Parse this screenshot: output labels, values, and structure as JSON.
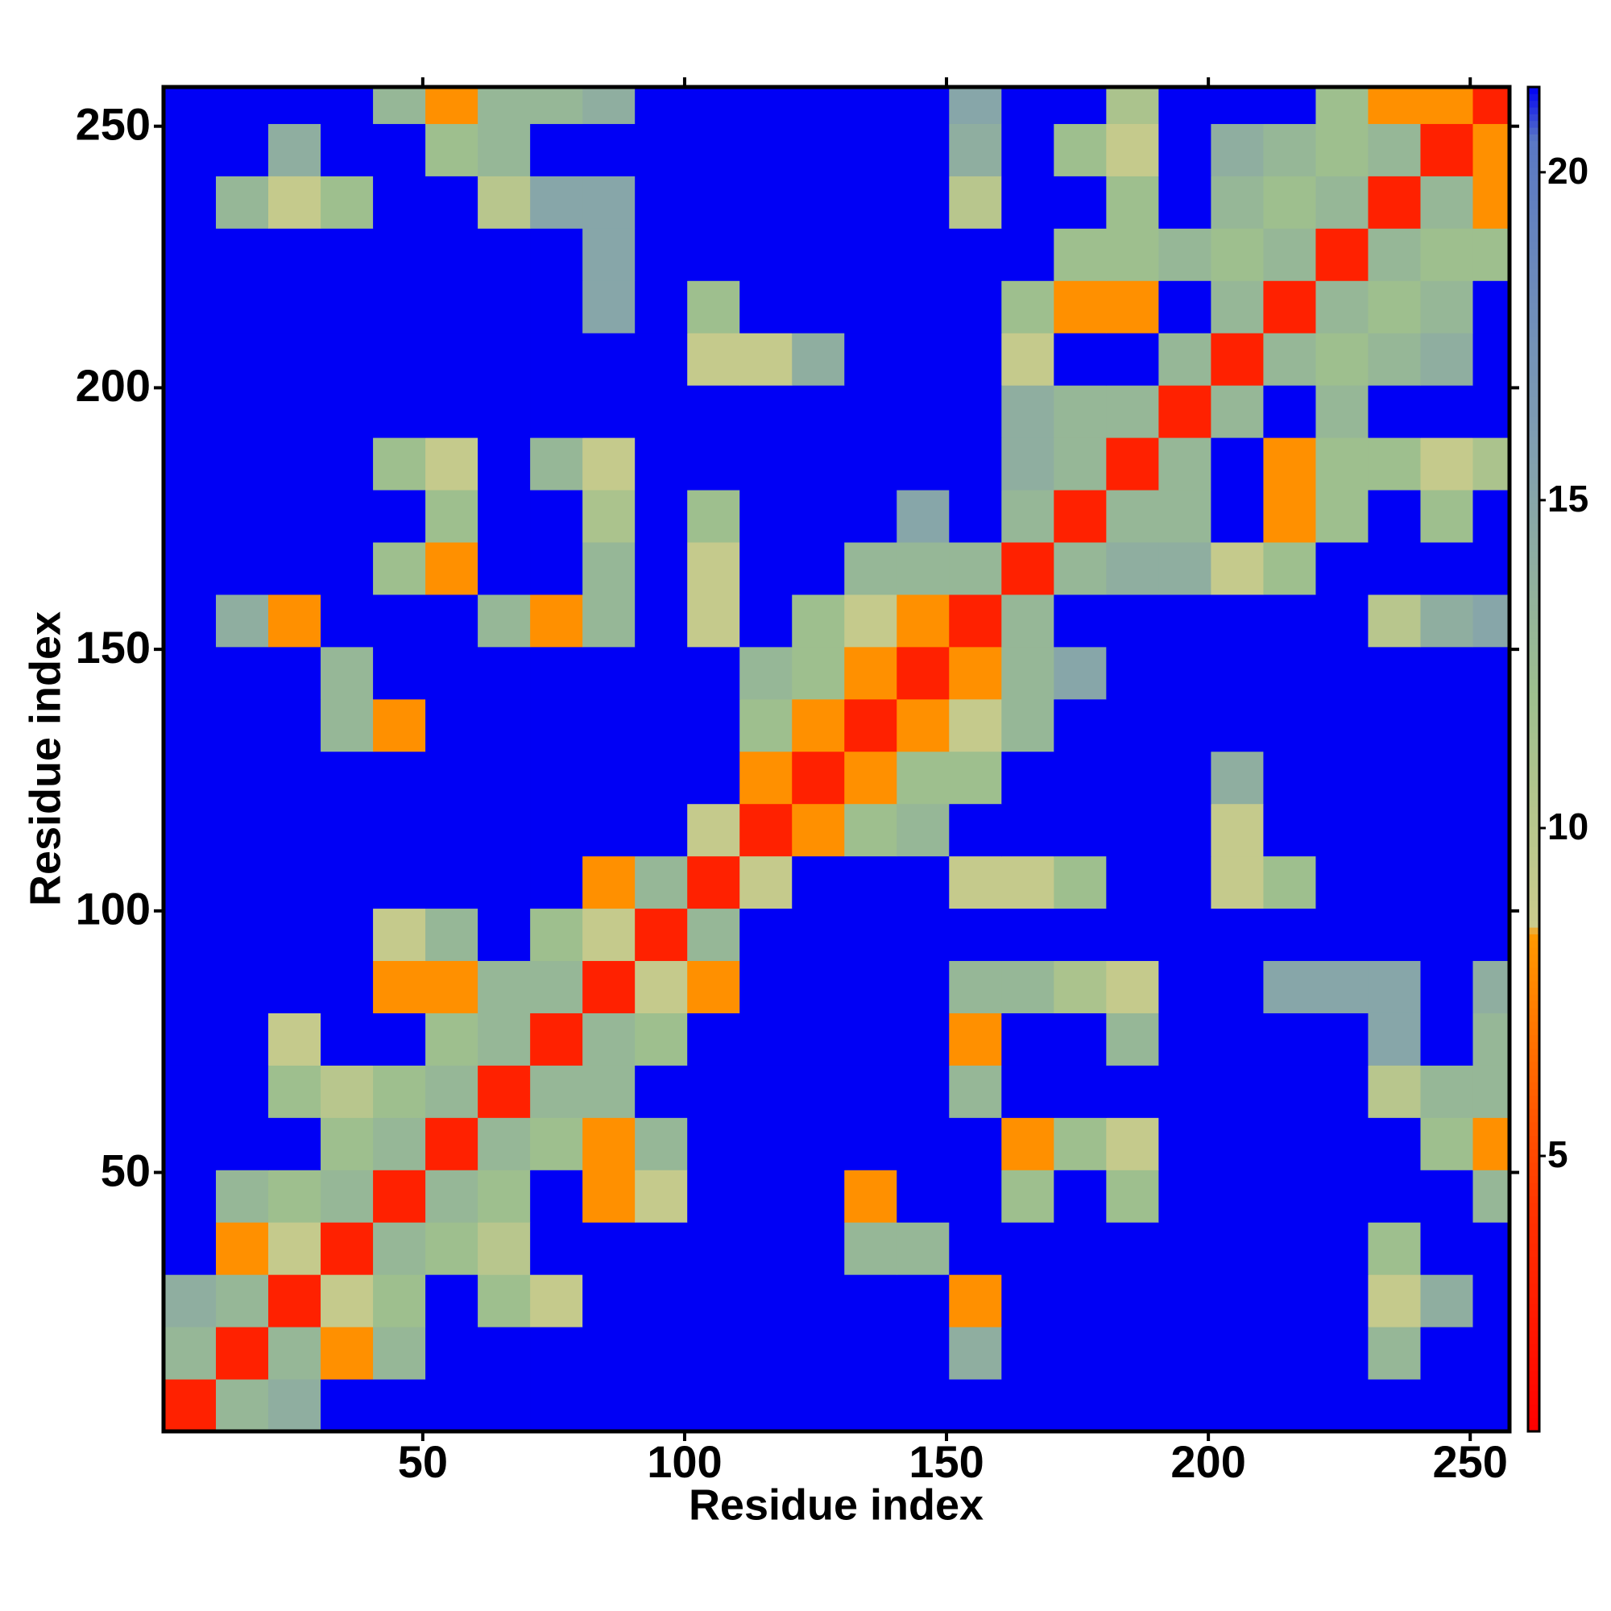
{
  "chart_data": {
    "type": "heatmap",
    "xlabel": "Residue index",
    "ylabel": "Residue index",
    "xlim": [
      0.5,
      257.5
    ],
    "ylim": [
      0.5,
      257.5
    ],
    "xticks": [
      50,
      100,
      150,
      200,
      250
    ],
    "yticks": [
      50,
      100,
      150,
      200,
      250
    ],
    "xbins": [
      0.5,
      10.5,
      20.5,
      30.5,
      40.5,
      50.5,
      60.5,
      70.5,
      80.5,
      90.5,
      100.5,
      110.5,
      120.5,
      130.5,
      140.5,
      150.5,
      160.5,
      170.5,
      180.5,
      190.5,
      200.5,
      210.5,
      220.5,
      230.5,
      240.5,
      250.5,
      257.5
    ],
    "ybins": [
      0.5,
      10.5,
      20.5,
      30.5,
      40.5,
      50.5,
      60.5,
      70.5,
      80.5,
      90.5,
      100.5,
      110.5,
      120.5,
      130.5,
      140.5,
      150.5,
      160.5,
      170.5,
      180.5,
      190.5,
      200.5,
      210.5,
      220.5,
      230.5,
      240.5,
      250.5,
      257.5
    ],
    "zlim": [
      0.8,
      21.3
    ],
    "zticks": [
      5,
      10,
      15,
      20
    ],
    "colorscale": [
      [
        0.8,
        "#ff0000"
      ],
      [
        4,
        "#ff3000"
      ],
      [
        8.4,
        "#ff9a00"
      ],
      [
        8.5,
        "#cccc8c"
      ],
      [
        12,
        "#9ebf8e"
      ],
      [
        16,
        "#7f9db2"
      ],
      [
        20.5,
        "#5a78c4"
      ],
      [
        21.3,
        "#0000f5"
      ]
    ],
    "values": [
      [
        3,
        13,
        14,
        21.3,
        21.3,
        21.3,
        21.3,
        21.3,
        21.3,
        21.3,
        21.3,
        21.3,
        21.3,
        21.3,
        21.3,
        21.3,
        21.3,
        21.3,
        21.3,
        21.3,
        21.3,
        21.3,
        21.3,
        21.3,
        21.3,
        21.3
      ],
      [
        13,
        3,
        13,
        8,
        13,
        21.3,
        21.3,
        21.3,
        21.3,
        21.3,
        21.3,
        21.3,
        21.3,
        21.3,
        21.3,
        14,
        21.3,
        21.3,
        21.3,
        21.3,
        21.3,
        21.3,
        21.3,
        13,
        21.3,
        21.3
      ],
      [
        14,
        13,
        3,
        9,
        12,
        21.3,
        12,
        9,
        21.3,
        21.3,
        21.3,
        21.3,
        21.3,
        21.3,
        21.3,
        8,
        21.3,
        21.3,
        21.3,
        21.3,
        21.3,
        21.3,
        21.3,
        9,
        14,
        21.3
      ],
      [
        21.3,
        8,
        9,
        3,
        13,
        12,
        10,
        21.3,
        21.3,
        21.3,
        21.3,
        21.3,
        21.3,
        13,
        13,
        21.3,
        21.3,
        21.3,
        21.3,
        21.3,
        21.3,
        21.3,
        21.3,
        12,
        21.3,
        21.3
      ],
      [
        21.3,
        13,
        12,
        13,
        3,
        13,
        12,
        21.3,
        8,
        9,
        21.3,
        21.3,
        21.3,
        8,
        21.3,
        21.3,
        12,
        21.3,
        12,
        21.3,
        21.3,
        21.3,
        21.3,
        21.3,
        21.3,
        13
      ],
      [
        21.3,
        21.3,
        21.3,
        12,
        13,
        3,
        13,
        12,
        8,
        13,
        21.3,
        21.3,
        21.3,
        21.3,
        21.3,
        21.3,
        8,
        12,
        9,
        21.3,
        21.3,
        21.3,
        21.3,
        21.3,
        12,
        8
      ],
      [
        21.3,
        21.3,
        12,
        10,
        12,
        13,
        3,
        13,
        13,
        21.3,
        21.3,
        21.3,
        21.3,
        21.3,
        21.3,
        13,
        21.3,
        21.3,
        21.3,
        21.3,
        21.3,
        21.3,
        21.3,
        10,
        13,
        13
      ],
      [
        21.3,
        21.3,
        9,
        21.3,
        21.3,
        12,
        13,
        3,
        13,
        12,
        21.3,
        21.3,
        21.3,
        21.3,
        21.3,
        8,
        21.3,
        21.3,
        13,
        21.3,
        21.3,
        21.3,
        21.3,
        15,
        21.3,
        13
      ],
      [
        21.3,
        21.3,
        21.3,
        21.3,
        8,
        8,
        13,
        13,
        3,
        9,
        8,
        21.3,
        21.3,
        21.3,
        21.3,
        13,
        13,
        11,
        9,
        21.3,
        21.3,
        15,
        15,
        15,
        21.3,
        14
      ],
      [
        21.3,
        21.3,
        21.3,
        21.3,
        9,
        13,
        21.3,
        12,
        9,
        3,
        13,
        21.3,
        21.3,
        21.3,
        21.3,
        21.3,
        21.3,
        21.3,
        21.3,
        21.3,
        21.3,
        21.3,
        21.3,
        21.3,
        21.3,
        21.3
      ],
      [
        21.3,
        21.3,
        21.3,
        21.3,
        21.3,
        21.3,
        21.3,
        21.3,
        8,
        13,
        3,
        9,
        21.3,
        21.3,
        21.3,
        9,
        9,
        12,
        21.3,
        21.3,
        9,
        12,
        21.3,
        21.3,
        21.3,
        21.3
      ],
      [
        21.3,
        21.3,
        21.3,
        21.3,
        21.3,
        21.3,
        21.3,
        21.3,
        21.3,
        21.3,
        9,
        3,
        8,
        12,
        13,
        21.3,
        21.3,
        21.3,
        21.3,
        21.3,
        9,
        21.3,
        21.3,
        21.3,
        21.3,
        21.3
      ],
      [
        21.3,
        21.3,
        21.3,
        21.3,
        21.3,
        21.3,
        21.3,
        21.3,
        21.3,
        21.3,
        21.3,
        8,
        3,
        8,
        12,
        12,
        21.3,
        21.3,
        21.3,
        21.3,
        14,
        21.3,
        21.3,
        21.3,
        21.3,
        21.3
      ],
      [
        21.3,
        21.3,
        21.3,
        13,
        8,
        21.3,
        21.3,
        21.3,
        21.3,
        21.3,
        21.3,
        12,
        8,
        3,
        8,
        9,
        13,
        21.3,
        21.3,
        21.3,
        21.3,
        21.3,
        21.3,
        21.3,
        21.3,
        21.3
      ],
      [
        21.3,
        21.3,
        21.3,
        13,
        21.3,
        21.3,
        21.3,
        21.3,
        21.3,
        21.3,
        21.3,
        13,
        12,
        8,
        3,
        8,
        13,
        15,
        21.3,
        21.3,
        21.3,
        21.3,
        21.3,
        21.3,
        21.3,
        21.3
      ],
      [
        21.3,
        14,
        8,
        21.3,
        21.3,
        21.3,
        13,
        8,
        13,
        21.3,
        9,
        21.3,
        12,
        9,
        8,
        3,
        13,
        21.3,
        21.3,
        21.3,
        21.3,
        21.3,
        21.3,
        10,
        14,
        15
      ],
      [
        21.3,
        21.3,
        21.3,
        21.3,
        12,
        8,
        21.3,
        21.3,
        13,
        21.3,
        9,
        21.3,
        21.3,
        13,
        13,
        13,
        3,
        13,
        14,
        14,
        9,
        12,
        21.3,
        21.3,
        21.3,
        21.3
      ],
      [
        21.3,
        21.3,
        21.3,
        21.3,
        21.3,
        12,
        21.3,
        21.3,
        11,
        21.3,
        12,
        21.3,
        21.3,
        21.3,
        15,
        21.3,
        13,
        3,
        13,
        13,
        21.3,
        8,
        12,
        21.3,
        12,
        21.3
      ],
      [
        21.3,
        21.3,
        21.3,
        21.3,
        12,
        9,
        21.3,
        13,
        9,
        21.3,
        21.3,
        21.3,
        21.3,
        21.3,
        21.3,
        21.3,
        14,
        13,
        3,
        13,
        21.3,
        8,
        12,
        12,
        9,
        11
      ],
      [
        21.3,
        21.3,
        21.3,
        21.3,
        21.3,
        21.3,
        21.3,
        21.3,
        21.3,
        21.3,
        21.3,
        21.3,
        21.3,
        21.3,
        21.3,
        21.3,
        14,
        13,
        13,
        3,
        13,
        21.3,
        13,
        21.3,
        21.3,
        21.3
      ],
      [
        21.3,
        21.3,
        21.3,
        21.3,
        21.3,
        21.3,
        21.3,
        21.3,
        21.3,
        21.3,
        9,
        9,
        14,
        21.3,
        21.3,
        21.3,
        9,
        21.3,
        21.3,
        13,
        3,
        13,
        12,
        13,
        14,
        21.3
      ],
      [
        21.3,
        21.3,
        21.3,
        21.3,
        21.3,
        21.3,
        21.3,
        21.3,
        15,
        21.3,
        12,
        21.3,
        21.3,
        21.3,
        21.3,
        21.3,
        12,
        8,
        8,
        21.3,
        13,
        3,
        13,
        12,
        13,
        21.3
      ],
      [
        21.3,
        21.3,
        21.3,
        21.3,
        21.3,
        21.3,
        21.3,
        21.3,
        15,
        21.3,
        21.3,
        21.3,
        21.3,
        21.3,
        21.3,
        21.3,
        21.3,
        12,
        12,
        13,
        12,
        13,
        3,
        13,
        12,
        12
      ],
      [
        21.3,
        13,
        9,
        12,
        21.3,
        21.3,
        10,
        15,
        15,
        21.3,
        21.3,
        21.3,
        21.3,
        21.3,
        21.3,
        10,
        21.3,
        21.3,
        12,
        21.3,
        13,
        12,
        13,
        3,
        13,
        8
      ],
      [
        21.3,
        21.3,
        14,
        21.3,
        21.3,
        12,
        13,
        21.3,
        21.3,
        21.3,
        21.3,
        21.3,
        21.3,
        21.3,
        21.3,
        14,
        21.3,
        12,
        9,
        21.3,
        14,
        13,
        12,
        13,
        3,
        8
      ],
      [
        21.3,
        21.3,
        21.3,
        21.3,
        13,
        8,
        13,
        13,
        14,
        21.3,
        21.3,
        21.3,
        21.3,
        21.3,
        21.3,
        15,
        21.3,
        21.3,
        11,
        21.3,
        21.3,
        21.3,
        12,
        8,
        8,
        3
      ]
    ]
  }
}
